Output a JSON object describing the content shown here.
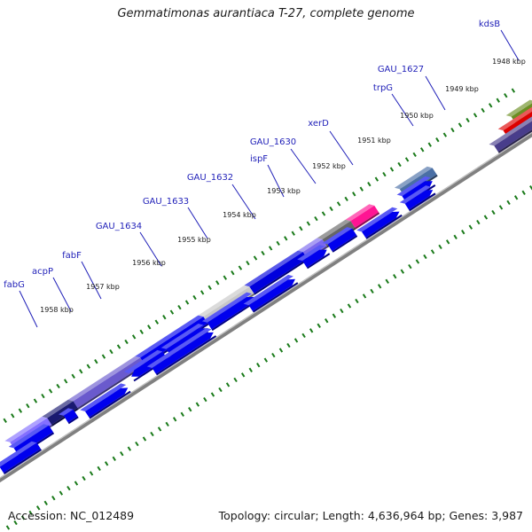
{
  "title": "Gemmatimonas aurantiaca T-27, complete genome",
  "footer": {
    "accession": "Accession: NC_012489",
    "summary": "Topology: circular; Length: 4,636,964 bp; Genes: 3,987"
  },
  "colors": {
    "label": "#1f1fb8",
    "leader": "#1f1fb8",
    "backbone": "#808080",
    "tick": "#1a7a1a",
    "gene": "#0000ee"
  },
  "kbp_ticks": [
    "1948 kbp",
    "1949 kbp",
    "1950 kbp",
    "1951 kbp",
    "1952 kbp",
    "1953 kbp",
    "1954 kbp",
    "1955 kbp",
    "1956 kbp",
    "1957 kbp",
    "1958 kbp"
  ],
  "gene_labels": [
    "kdsB",
    "GAU_1627",
    "trpG",
    "xerD",
    "GAU_1630",
    "ispF",
    "GAU_1632",
    "GAU_1633",
    "GAU_1634",
    "fabF",
    "acpP",
    "fabG"
  ]
}
